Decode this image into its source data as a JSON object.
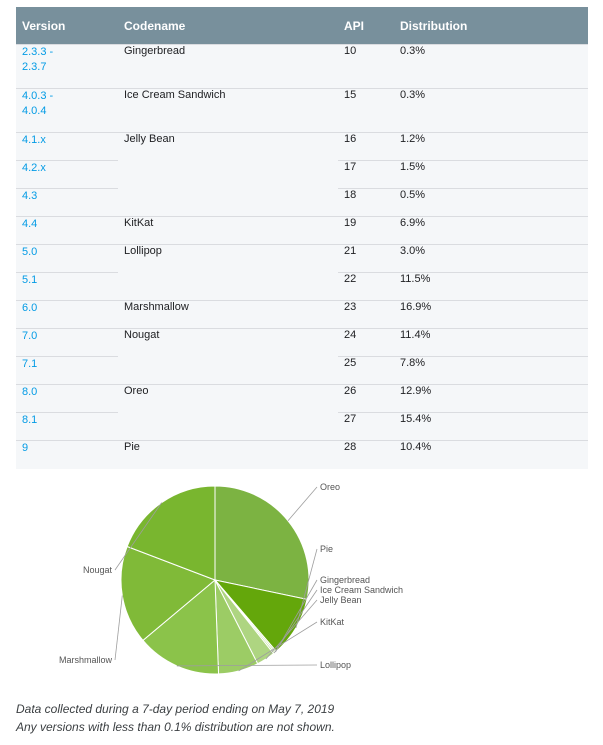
{
  "table": {
    "headers": {
      "version": "Version",
      "codename": "Codename",
      "api": "API",
      "distribution": "Distribution"
    },
    "rows": [
      {
        "version": [
          "2.3.3 -",
          "2.3.7"
        ],
        "codename": "Gingerbread",
        "api": "10",
        "distribution": "0.3%"
      },
      {
        "version": [
          "4.0.3 -",
          "4.0.4"
        ],
        "codename": "Ice Cream Sandwich",
        "api": "15",
        "distribution": "0.3%"
      },
      {
        "version": [
          "4.1.x"
        ],
        "codename": "Jelly Bean",
        "api": "16",
        "distribution": "1.2%"
      },
      {
        "version": [
          "4.2.x"
        ],
        "codename": "",
        "api": "17",
        "distribution": "1.5%"
      },
      {
        "version": [
          "4.3"
        ],
        "codename": "",
        "api": "18",
        "distribution": "0.5%"
      },
      {
        "version": [
          "4.4"
        ],
        "codename": "KitKat",
        "api": "19",
        "distribution": "6.9%"
      },
      {
        "version": [
          "5.0"
        ],
        "codename": "Lollipop",
        "api": "21",
        "distribution": "3.0%"
      },
      {
        "version": [
          "5.1"
        ],
        "codename": "",
        "api": "22",
        "distribution": "11.5%"
      },
      {
        "version": [
          "6.0"
        ],
        "codename": "Marshmallow",
        "api": "23",
        "distribution": "16.9%"
      },
      {
        "version": [
          "7.0"
        ],
        "codename": "Nougat",
        "api": "24",
        "distribution": "11.4%"
      },
      {
        "version": [
          "7.1"
        ],
        "codename": "",
        "api": "25",
        "distribution": "7.8%"
      },
      {
        "version": [
          "8.0"
        ],
        "codename": "Oreo",
        "api": "26",
        "distribution": "12.9%"
      },
      {
        "version": [
          "8.1"
        ],
        "codename": "",
        "api": "27",
        "distribution": "15.4%"
      },
      {
        "version": [
          "9"
        ],
        "codename": "Pie",
        "api": "28",
        "distribution": "10.4%"
      }
    ]
  },
  "chart_data": {
    "type": "pie",
    "slices": [
      {
        "label": "Oreo",
        "value": 28.3,
        "color": "#7cb342"
      },
      {
        "label": "Pie",
        "value": 10.4,
        "color": "#64a70b"
      },
      {
        "label": "Gingerbread",
        "value": 0.3,
        "color": "#c5e1a5"
      },
      {
        "label": "Ice Cream Sandwich",
        "value": 0.3,
        "color": "#b9db8e"
      },
      {
        "label": "Jelly Bean",
        "value": 3.2,
        "color": "#aed581"
      },
      {
        "label": "KitKat",
        "value": 6.9,
        "color": "#9ccc65"
      },
      {
        "label": "Lollipop",
        "value": 14.5,
        "color": "#8bc34a"
      },
      {
        "label": "Marshmallow",
        "value": 16.9,
        "color": "#80ba38"
      },
      {
        "label": "Nougat",
        "value": 19.2,
        "color": "#79b62f"
      }
    ]
  },
  "notes": {
    "line1": "Data collected during a 7-day period ending on May 7, 2019",
    "line2": "Any versions with less than 0.1% distribution are not shown."
  },
  "colors": {
    "header_bg": "#78909c",
    "link": "#039be5",
    "row_bg": "#f5f7f9"
  }
}
